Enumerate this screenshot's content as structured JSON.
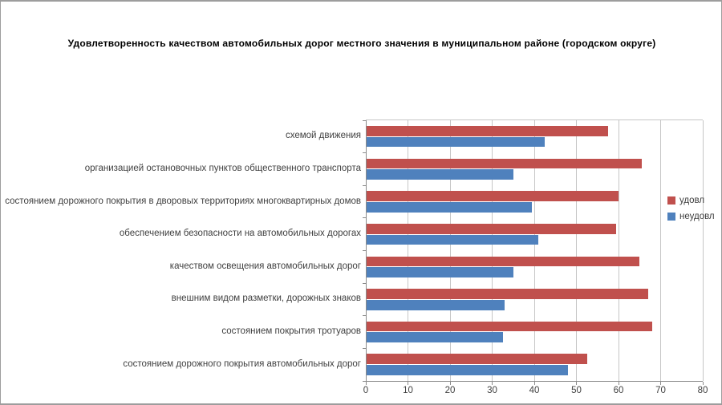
{
  "window": {
    "background": "#ffffff",
    "frame_color": "#9d9d9d"
  },
  "colors": {
    "satisfied_bar": "#c0504d",
    "unsatisfied_bar": "#4f81bd",
    "gridline": "#c6c6c6",
    "axis": "#8c8c8c",
    "text": "#3f3f3f",
    "title_text": "#000000"
  },
  "chart_data": {
    "type": "bar",
    "orientation": "horizontal",
    "title": "Удовлетворенность качеством автомобильных дорог местного значения в муниципальном районе (городском округе)",
    "categories": [
      "схемой движения",
      "организацией остановочных пунктов общественного транспорта",
      "состоянием дорожного покрытия в дворовых территориях многоквартирных домов",
      "обеспечением безопасности на автомобильных дорогах",
      "качеством освещения автомобильных дорог",
      "внешним видом разметки, дорожных знаков",
      "состоянием покрытия тротуаров",
      "состоянием дорожного покрытия автомобильных дорог"
    ],
    "category_order": "top-to-bottom",
    "series": [
      {
        "name": "удовл",
        "color": "#c0504d",
        "values": [
          57.5,
          65.5,
          60,
          59.5,
          65,
          67,
          68,
          52.5
        ]
      },
      {
        "name": "неудовл",
        "color": "#4f81bd",
        "values": [
          42.5,
          35,
          39.5,
          41,
          35,
          33,
          32.5,
          48
        ]
      }
    ],
    "xlabel": "",
    "ylabel": "",
    "xlim": [
      0,
      80
    ],
    "x_ticks": [
      0,
      10,
      20,
      30,
      40,
      50,
      60,
      70,
      80
    ],
    "grid": "vertical-only",
    "legend_position": "right"
  }
}
